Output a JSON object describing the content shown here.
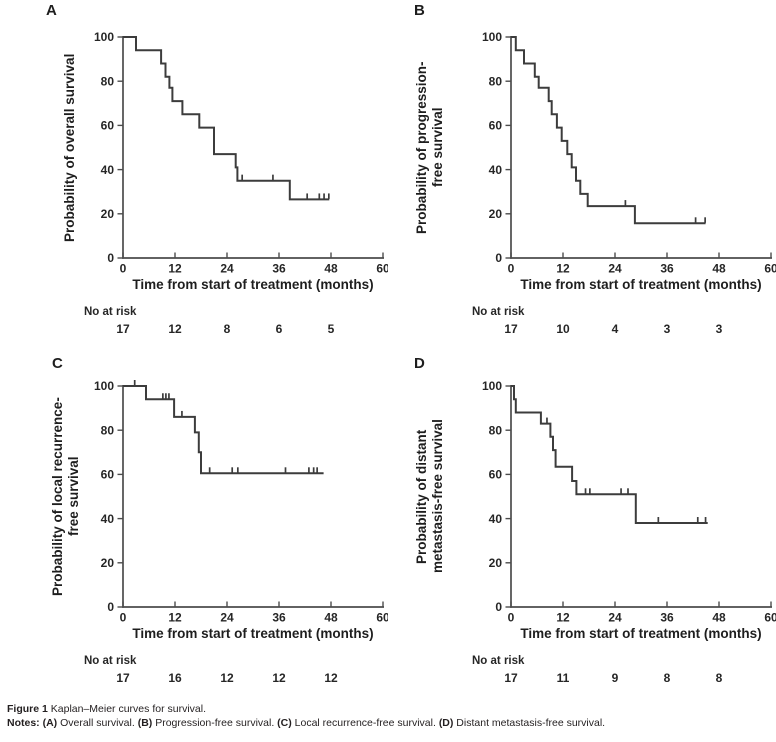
{
  "figure": {
    "caption_label": "Figure 1",
    "caption_text": "Kaplan–Meier curves for survival.",
    "notes_label": "Notes:",
    "notes": [
      {
        "bold": "(A)",
        "text": " Overall survival."
      },
      {
        "bold": "(B)",
        "text": " Progression-free survival."
      },
      {
        "bold": "(C)",
        "text": " Local recurrence-free survival."
      },
      {
        "bold": "(D)",
        "text": " Distant metastasis-free survival."
      }
    ]
  },
  "colors": {
    "curve": "#3c3c3c",
    "axis": "#4c4c4c",
    "text": "#231f20",
    "background": "#ffffff"
  },
  "chart_data": [
    {
      "type": "line",
      "panel": "A",
      "title_lines": [
        "Probability of overall survival"
      ],
      "xlabel": "Time from start of treatment (months)",
      "xlim": [
        0,
        60
      ],
      "ylim": [
        0,
        100
      ],
      "x_ticks": [
        0,
        12,
        24,
        36,
        48,
        60
      ],
      "y_ticks": [
        0,
        20,
        40,
        60,
        80,
        100
      ],
      "grid": false,
      "risk_label": "No at risk",
      "risk_times": [
        0,
        12,
        24,
        36,
        48
      ],
      "risk_counts": [
        "17",
        "12",
        "8",
        "6",
        "5"
      ],
      "steps": [
        [
          0,
          100
        ],
        [
          3,
          100
        ],
        [
          3,
          94
        ],
        [
          8.8,
          94
        ],
        [
          8.8,
          88
        ],
        [
          9.8,
          88
        ],
        [
          9.8,
          82
        ],
        [
          10.7,
          82
        ],
        [
          10.7,
          77
        ],
        [
          11.4,
          77
        ],
        [
          11.4,
          71
        ],
        [
          13.7,
          71
        ],
        [
          13.7,
          65
        ],
        [
          17.6,
          65
        ],
        [
          17.6,
          59
        ],
        [
          21,
          59
        ],
        [
          21,
          47
        ],
        [
          26,
          47
        ],
        [
          26,
          41
        ],
        [
          26.4,
          41
        ],
        [
          26.4,
          35
        ],
        [
          38.5,
          35
        ],
        [
          38.5,
          26.5
        ],
        [
          47.6,
          26.5
        ]
      ],
      "censors": [
        [
          27.5,
          35
        ],
        [
          34.6,
          35
        ],
        [
          42.5,
          26.5
        ],
        [
          45.3,
          26.5
        ],
        [
          46.4,
          26.5
        ],
        [
          47.5,
          26.5
        ]
      ]
    },
    {
      "type": "line",
      "panel": "B",
      "title_lines": [
        "Probability of progression-",
        "free survival"
      ],
      "xlabel": "Time from start of treatment (months)",
      "xlim": [
        0,
        60
      ],
      "ylim": [
        0,
        100
      ],
      "x_ticks": [
        0,
        12,
        24,
        36,
        48,
        60
      ],
      "y_ticks": [
        0,
        20,
        40,
        60,
        80,
        100
      ],
      "grid": false,
      "risk_label": "No at risk",
      "risk_times": [
        0,
        12,
        24,
        36,
        48
      ],
      "risk_counts": [
        "17",
        "10",
        "4",
        "3",
        "3"
      ],
      "steps": [
        [
          0,
          100
        ],
        [
          1.1,
          100
        ],
        [
          1.1,
          94
        ],
        [
          3,
          94
        ],
        [
          3,
          88
        ],
        [
          5.5,
          88
        ],
        [
          5.5,
          82
        ],
        [
          6.4,
          82
        ],
        [
          6.4,
          77
        ],
        [
          8.7,
          77
        ],
        [
          8.7,
          71
        ],
        [
          9.4,
          71
        ],
        [
          9.4,
          65
        ],
        [
          10.6,
          65
        ],
        [
          10.6,
          59
        ],
        [
          11.7,
          59
        ],
        [
          11.7,
          53
        ],
        [
          13,
          53
        ],
        [
          13,
          47
        ],
        [
          14,
          47
        ],
        [
          14,
          41
        ],
        [
          15,
          41
        ],
        [
          15,
          35
        ],
        [
          16,
          35
        ],
        [
          16,
          29
        ],
        [
          17.7,
          29
        ],
        [
          17.7,
          23.5
        ],
        [
          28.6,
          23.5
        ],
        [
          28.6,
          15.7
        ],
        [
          44.9,
          15.7
        ]
      ],
      "censors": [
        [
          26.4,
          23.5
        ],
        [
          42.6,
          15.7
        ],
        [
          44.8,
          15.7
        ]
      ]
    },
    {
      "type": "line",
      "panel": "C",
      "title_lines": [
        "Probability of local recurrence-",
        "free survival"
      ],
      "xlabel": "Time from start of treatment (months)",
      "xlim": [
        0,
        60
      ],
      "ylim": [
        0,
        100
      ],
      "x_ticks": [
        0,
        12,
        24,
        36,
        48,
        60
      ],
      "y_ticks": [
        0,
        20,
        40,
        60,
        80,
        100
      ],
      "grid": false,
      "risk_label": "No at risk",
      "risk_times": [
        0,
        12,
        24,
        36,
        48
      ],
      "risk_counts": [
        "17",
        "16",
        "12",
        "12",
        "12"
      ],
      "steps": [
        [
          0,
          100
        ],
        [
          5.3,
          100
        ],
        [
          5.3,
          94
        ],
        [
          11.8,
          94
        ],
        [
          11.8,
          86
        ],
        [
          16.6,
          86
        ],
        [
          16.6,
          79
        ],
        [
          17.5,
          79
        ],
        [
          17.5,
          70
        ],
        [
          18,
          70
        ],
        [
          18,
          60.5
        ],
        [
          46.3,
          60.5
        ]
      ],
      "censors": [
        [
          2.7,
          100
        ],
        [
          9.2,
          94
        ],
        [
          9.9,
          94
        ],
        [
          10.6,
          94
        ],
        [
          13.6,
          86
        ],
        [
          20,
          60.5
        ],
        [
          25.2,
          60.5
        ],
        [
          26.5,
          60.5
        ],
        [
          37.5,
          60.5
        ],
        [
          42.9,
          60.5
        ],
        [
          44,
          60.5
        ],
        [
          44.8,
          60.5
        ]
      ]
    },
    {
      "type": "line",
      "panel": "D",
      "title_lines": [
        "Probability of distant",
        "metastasis-free survival"
      ],
      "xlabel": "Time from start of treatment (months)",
      "xlim": [
        0,
        60
      ],
      "ylim": [
        0,
        100
      ],
      "x_ticks": [
        0,
        12,
        24,
        36,
        48,
        60
      ],
      "y_ticks": [
        0,
        20,
        40,
        60,
        80,
        100
      ],
      "grid": false,
      "risk_label": "No at risk",
      "risk_times": [
        0,
        12,
        24,
        36,
        48
      ],
      "risk_counts": [
        "17",
        "11",
        "9",
        "8",
        "8"
      ],
      "steps": [
        [
          0,
          100
        ],
        [
          0.7,
          100
        ],
        [
          0.7,
          94
        ],
        [
          1.1,
          94
        ],
        [
          1.1,
          88
        ],
        [
          6.9,
          88
        ],
        [
          6.9,
          83
        ],
        [
          9.1,
          83
        ],
        [
          9.1,
          77
        ],
        [
          9.7,
          77
        ],
        [
          9.7,
          71
        ],
        [
          10.3,
          71
        ],
        [
          10.3,
          63.5
        ],
        [
          14.1,
          63.5
        ],
        [
          14.1,
          57
        ],
        [
          15.1,
          57
        ],
        [
          15.1,
          51
        ],
        [
          28.8,
          51
        ],
        [
          28.8,
          38
        ],
        [
          45.4,
          38
        ]
      ],
      "censors": [
        [
          8.3,
          83
        ],
        [
          17.2,
          51
        ],
        [
          18.2,
          51
        ],
        [
          25.4,
          51
        ],
        [
          27,
          51
        ],
        [
          34,
          38
        ],
        [
          43.1,
          38
        ],
        [
          44.9,
          38
        ]
      ]
    }
  ]
}
